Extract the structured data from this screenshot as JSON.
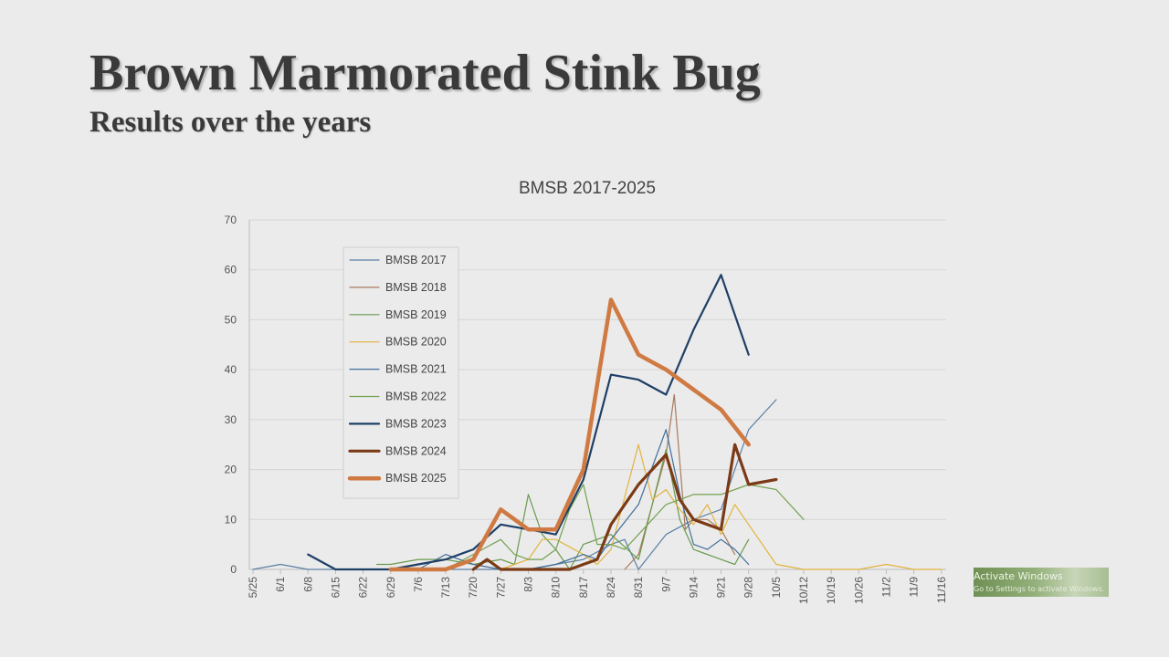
{
  "slide": {
    "title": "Brown Marmorated Stink Bug",
    "subtitle": "Results over the years"
  },
  "watermark": {
    "line1": "Activate Windows",
    "line2": "Go to Settings to activate Windows."
  },
  "chart_data": {
    "type": "line",
    "title": "BMSB 2017-2025",
    "xlabel": "",
    "ylabel": "",
    "ylim": [
      0,
      70
    ],
    "yticks": [
      0,
      10,
      20,
      30,
      40,
      50,
      60,
      70
    ],
    "grid": true,
    "legend_position": "top-left",
    "x_labels": [
      "5/25",
      "6/1",
      "6/8",
      "6/15",
      "6/22",
      "6/29",
      "7/6",
      "7/13",
      "7/20",
      "7/27",
      "8/3",
      "8/10",
      "8/17",
      "8/24",
      "8/31",
      "9/7",
      "9/14",
      "9/21",
      "9/28",
      "10/5",
      "10/12",
      "10/19",
      "10/26",
      "11/2",
      "11/9",
      "11/16"
    ],
    "series": [
      {
        "name": "BMSB 2017",
        "color": "#5b7fa6",
        "width": 1.2,
        "points": [
          [
            0,
            0
          ],
          [
            1,
            1
          ],
          [
            2,
            0
          ],
          [
            3,
            0
          ],
          [
            4,
            0
          ],
          [
            5,
            0
          ],
          [
            6,
            0
          ],
          [
            7,
            0
          ],
          [
            8,
            0
          ],
          [
            9,
            0
          ],
          [
            10,
            0
          ],
          [
            11,
            1
          ],
          [
            12,
            2
          ],
          [
            13,
            5
          ],
          [
            13.5,
            6
          ],
          [
            14,
            0
          ],
          [
            15,
            7
          ],
          [
            16,
            10
          ],
          [
            17,
            12
          ],
          [
            18,
            28
          ],
          [
            19,
            34
          ]
        ]
      },
      {
        "name": "BMSB 2018",
        "color": "#a87b5e",
        "width": 1.2,
        "points": [
          [
            13.5,
            0
          ],
          [
            14,
            3
          ],
          [
            15,
            23
          ],
          [
            15.3,
            35
          ],
          [
            15.7,
            8
          ],
          [
            16,
            10
          ],
          [
            16.5,
            10
          ],
          [
            17,
            8
          ],
          [
            17.5,
            3
          ]
        ]
      },
      {
        "name": "BMSB 2019",
        "color": "#6a9a4d",
        "width": 1.2,
        "points": [
          [
            4.5,
            1
          ],
          [
            5,
            1
          ],
          [
            6,
            2
          ],
          [
            7,
            2
          ],
          [
            8,
            1
          ],
          [
            9,
            2
          ],
          [
            9.5,
            1
          ],
          [
            10,
            15
          ],
          [
            10.5,
            7
          ],
          [
            11,
            4
          ],
          [
            11.5,
            0
          ],
          [
            12,
            5
          ],
          [
            13,
            7
          ],
          [
            14,
            2
          ],
          [
            15,
            24
          ],
          [
            15.5,
            10
          ],
          [
            16,
            4
          ],
          [
            17,
            2
          ],
          [
            17.5,
            1
          ],
          [
            18,
            6
          ]
        ]
      },
      {
        "name": "BMSB 2020",
        "color": "#e2b43c",
        "width": 1.2,
        "points": [
          [
            9,
            0
          ],
          [
            10,
            2
          ],
          [
            10.5,
            6
          ],
          [
            11,
            6
          ],
          [
            12,
            3
          ],
          [
            12.5,
            1
          ],
          [
            13,
            4
          ],
          [
            14,
            25
          ],
          [
            14.5,
            14
          ],
          [
            15,
            16
          ],
          [
            15.5,
            12
          ],
          [
            16,
            9
          ],
          [
            16.5,
            13
          ],
          [
            17,
            7
          ],
          [
            17.5,
            13
          ],
          [
            18,
            9
          ],
          [
            19,
            1
          ],
          [
            20,
            0
          ],
          [
            21,
            0
          ],
          [
            22,
            0
          ],
          [
            23,
            1
          ],
          [
            24,
            0
          ],
          [
            25,
            0
          ]
        ]
      },
      {
        "name": "BMSB 2021",
        "color": "#3f6d99",
        "width": 1.2,
        "points": [
          [
            5,
            0
          ],
          [
            6,
            0
          ],
          [
            7,
            3
          ],
          [
            8,
            1
          ],
          [
            9,
            0
          ],
          [
            10,
            0
          ],
          [
            11,
            1
          ],
          [
            12,
            3
          ],
          [
            12.5,
            2
          ],
          [
            13,
            6
          ],
          [
            14,
            13
          ],
          [
            15,
            28
          ],
          [
            15.5,
            15
          ],
          [
            16,
            5
          ],
          [
            16.5,
            4
          ],
          [
            17,
            6
          ],
          [
            17.5,
            4
          ],
          [
            18,
            1
          ]
        ]
      },
      {
        "name": "BMSB 2022",
        "color": "#72a24f",
        "width": 1.2,
        "points": [
          [
            6,
            0
          ],
          [
            7,
            0
          ],
          [
            8,
            3
          ],
          [
            9,
            6
          ],
          [
            9.5,
            3
          ],
          [
            10,
            2
          ],
          [
            10.5,
            2
          ],
          [
            11,
            4
          ],
          [
            11.5,
            12
          ],
          [
            12,
            17
          ],
          [
            12.5,
            5
          ],
          [
            13,
            5
          ],
          [
            13.5,
            4
          ],
          [
            14,
            7
          ],
          [
            15,
            13
          ],
          [
            15.5,
            14
          ],
          [
            16,
            15
          ],
          [
            17,
            15
          ],
          [
            17.5,
            16
          ],
          [
            18,
            17
          ],
          [
            19,
            16
          ],
          [
            20,
            10
          ]
        ]
      },
      {
        "name": "BMSB 2023",
        "color": "#1e3f66",
        "width": 2.2,
        "points": [
          [
            2,
            3
          ],
          [
            3,
            0
          ],
          [
            4,
            0
          ],
          [
            5,
            0
          ],
          [
            6,
            1
          ],
          [
            7,
            2
          ],
          [
            8,
            4
          ],
          [
            9,
            9
          ],
          [
            10,
            8
          ],
          [
            11,
            7
          ],
          [
            12,
            18
          ],
          [
            13,
            39
          ],
          [
            14,
            38
          ],
          [
            15,
            35
          ],
          [
            16,
            48
          ],
          [
            17,
            59
          ],
          [
            18,
            43
          ]
        ]
      },
      {
        "name": "BMSB 2024",
        "color": "#7b3a16",
        "width": 3.2,
        "points": [
          [
            8,
            0
          ],
          [
            8.5,
            2
          ],
          [
            9,
            0
          ],
          [
            10,
            0
          ],
          [
            11,
            0
          ],
          [
            11.5,
            0
          ],
          [
            12,
            1
          ],
          [
            12.5,
            2
          ],
          [
            13,
            9
          ],
          [
            14,
            17
          ],
          [
            15,
            23
          ],
          [
            15.5,
            14
          ],
          [
            16,
            10
          ],
          [
            17,
            8
          ],
          [
            17.5,
            25
          ],
          [
            18,
            17
          ],
          [
            19,
            18
          ]
        ]
      },
      {
        "name": "BMSB 2025",
        "color": "#d07a43",
        "width": 4.5,
        "points": [
          [
            5,
            0
          ],
          [
            6,
            0
          ],
          [
            7,
            0
          ],
          [
            8,
            2
          ],
          [
            9,
            12
          ],
          [
            10,
            8
          ],
          [
            11,
            8
          ],
          [
            12,
            20
          ],
          [
            13,
            54
          ],
          [
            14,
            43
          ],
          [
            15,
            40
          ],
          [
            16,
            36
          ],
          [
            17,
            32
          ],
          [
            18,
            25
          ]
        ]
      }
    ]
  }
}
